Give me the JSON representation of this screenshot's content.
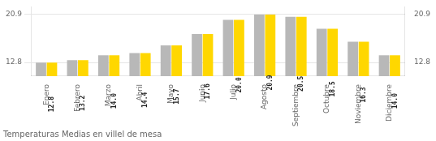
{
  "chart_data": {
    "type": "bar",
    "title": "Temperaturas Medias en villel de mesa",
    "categories": [
      "Enero",
      "Febrero",
      "Marzo",
      "Abril",
      "Mayo",
      "Junio",
      "Julio",
      "Agosto",
      "Septiembre",
      "Octubre",
      "Noviembre",
      "Diciembre"
    ],
    "series": [
      {
        "color": "#B8B8B8",
        "values": [
          12.8,
          13.2,
          14.0,
          14.4,
          15.7,
          17.6,
          20.0,
          20.9,
          20.5,
          18.5,
          16.3,
          14.0
        ]
      },
      {
        "color": "#FFD700",
        "values": [
          12.8,
          13.2,
          14.0,
          14.4,
          15.7,
          17.6,
          20.0,
          20.9,
          20.5,
          18.5,
          16.3,
          14.0
        ],
        "data_labels": true,
        "value_labels": [
          "12.8",
          "13.2",
          "14.0",
          "14.4",
          "15.7",
          "17.6",
          "20.0",
          "20.9",
          "20.5",
          "18.5",
          "16.3",
          "14.0"
        ]
      }
    ],
    "ylim": [
      10.5,
      22.2
    ],
    "yticks": [
      12.8,
      20.9
    ],
    "y2lim": [
      10.5,
      22.2
    ],
    "y2ticks": [
      12.8,
      20.9
    ],
    "grid": true
  }
}
